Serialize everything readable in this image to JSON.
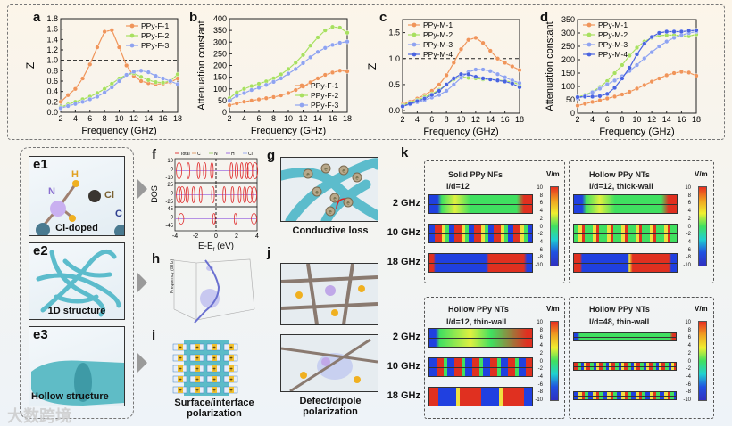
{
  "panel_labels": {
    "a": "a",
    "b": "b",
    "c": "c",
    "d": "d",
    "e1": "e1",
    "e2": "e2",
    "e3": "e3",
    "f": "f",
    "g": "g",
    "h": "h",
    "i": "i",
    "j": "j",
    "k": "k"
  },
  "chart_data": [
    {
      "id": "a",
      "type": "line",
      "xlabel": "Frequency (GHz)",
      "ylabel": "Z",
      "xlim": [
        2,
        18
      ],
      "ylim": [
        0,
        1.8
      ],
      "xticks": [
        2,
        4,
        6,
        8,
        10,
        12,
        14,
        16,
        18
      ],
      "yticks": [
        0,
        0.2,
        0.4,
        0.6,
        0.8,
        1.0,
        1.2,
        1.4,
        1.6,
        1.8
      ],
      "ytick_labels": [
        "0.0",
        "0.2",
        "0.4",
        "0.6",
        "0.8",
        "1.0",
        "1.2",
        "1.4",
        "1.6",
        "1.8"
      ],
      "reference_line": 1.0,
      "legend": "top-right",
      "x": [
        2,
        3,
        4,
        5,
        6,
        7,
        8,
        9,
        10,
        11,
        12,
        13,
        14,
        15,
        16,
        17,
        18
      ],
      "series": [
        {
          "name": "PPy-F-1",
          "color": "#f0955a",
          "values": [
            0.2,
            0.33,
            0.45,
            0.65,
            0.92,
            1.25,
            1.55,
            1.58,
            1.25,
            0.9,
            0.7,
            0.6,
            0.56,
            0.54,
            0.55,
            0.58,
            0.65
          ]
        },
        {
          "name": "PPy-F-2",
          "color": "#a8e060",
          "values": [
            0.1,
            0.15,
            0.2,
            0.25,
            0.3,
            0.37,
            0.45,
            0.55,
            0.65,
            0.72,
            0.75,
            0.68,
            0.62,
            0.58,
            0.57,
            0.6,
            0.73
          ]
        },
        {
          "name": "PPy-F-3",
          "color": "#8fa3f0",
          "values": [
            0.08,
            0.12,
            0.16,
            0.2,
            0.25,
            0.3,
            0.38,
            0.48,
            0.6,
            0.72,
            0.78,
            0.8,
            0.77,
            0.7,
            0.65,
            0.6,
            0.54
          ]
        }
      ]
    },
    {
      "id": "b",
      "type": "line",
      "xlabel": "Frequency (GHz)",
      "ylabel": "Attenuation constant",
      "xlim": [
        2,
        18
      ],
      "ylim": [
        0,
        400
      ],
      "xticks": [
        2,
        4,
        6,
        8,
        10,
        12,
        14,
        16,
        18
      ],
      "yticks": [
        0,
        50,
        100,
        150,
        200,
        250,
        300,
        350,
        400
      ],
      "ytick_labels": [
        "0",
        "50",
        "100",
        "150",
        "200",
        "250",
        "300",
        "350",
        "400"
      ],
      "legend": "bottom-right",
      "x": [
        2,
        3,
        4,
        5,
        6,
        7,
        8,
        9,
        10,
        11,
        12,
        13,
        14,
        15,
        16,
        17,
        18
      ],
      "series": [
        {
          "name": "PPy-F-1",
          "color": "#f0955a",
          "values": [
            30,
            38,
            45,
            50,
            55,
            60,
            65,
            72,
            82,
            95,
            110,
            128,
            145,
            160,
            170,
            178,
            175
          ]
        },
        {
          "name": "PPy-F-2",
          "color": "#a8e060",
          "values": [
            60,
            85,
            100,
            112,
            122,
            132,
            145,
            162,
            185,
            212,
            245,
            285,
            320,
            350,
            365,
            362,
            340
          ]
        },
        {
          "name": "PPy-F-3",
          "color": "#8fa3f0",
          "values": [
            50,
            70,
            82,
            95,
            105,
            117,
            130,
            145,
            165,
            185,
            210,
            235,
            258,
            275,
            288,
            297,
            302
          ]
        }
      ]
    },
    {
      "id": "c",
      "type": "line",
      "xlabel": "Frequency (GHz)",
      "ylabel": "Z",
      "xlim": [
        2,
        18
      ],
      "ylim": [
        -0.05,
        1.75
      ],
      "xticks": [
        2,
        4,
        6,
        8,
        10,
        12,
        14,
        16,
        18
      ],
      "yticks": [
        0,
        0.5,
        1.0,
        1.5
      ],
      "ytick_labels": [
        "0.0",
        "0.5",
        "1.0",
        "1.5"
      ],
      "reference_line": 1.0,
      "legend": "top-left",
      "x": [
        2,
        3,
        4,
        5,
        6,
        7,
        8,
        9,
        10,
        11,
        12,
        13,
        14,
        15,
        16,
        17,
        18
      ],
      "series": [
        {
          "name": "PPy-M-1",
          "color": "#f0955a",
          "values": [
            0.12,
            0.17,
            0.23,
            0.3,
            0.38,
            0.5,
            0.68,
            0.92,
            1.18,
            1.36,
            1.4,
            1.3,
            1.15,
            1.0,
            0.92,
            0.85,
            0.78
          ]
        },
        {
          "name": "PPy-M-2",
          "color": "#a8e060",
          "values": [
            0.1,
            0.15,
            0.2,
            0.26,
            0.32,
            0.4,
            0.5,
            0.6,
            0.65,
            0.63,
            0.62,
            0.6,
            0.6,
            0.59,
            0.57,
            0.55,
            0.5
          ]
        },
        {
          "name": "PPy-M-3",
          "color": "#8fa3f0",
          "values": [
            0.08,
            0.12,
            0.16,
            0.2,
            0.25,
            0.3,
            0.38,
            0.5,
            0.63,
            0.74,
            0.79,
            0.79,
            0.76,
            0.7,
            0.64,
            0.58,
            0.53
          ]
        },
        {
          "name": "PPy-M-4",
          "color": "#4a64e0",
          "values": [
            0.08,
            0.13,
            0.18,
            0.23,
            0.3,
            0.38,
            0.5,
            0.62,
            0.7,
            0.7,
            0.65,
            0.62,
            0.6,
            0.58,
            0.56,
            0.52,
            0.45
          ]
        }
      ]
    },
    {
      "id": "d",
      "type": "line",
      "xlabel": "Frequency (GHz)",
      "ylabel": "Attenuation constant",
      "xlim": [
        2,
        18
      ],
      "ylim": [
        0,
        350
      ],
      "xticks": [
        2,
        4,
        6,
        8,
        10,
        12,
        14,
        16,
        18
      ],
      "yticks": [
        0,
        50,
        100,
        150,
        200,
        250,
        300,
        350
      ],
      "ytick_labels": [
        "0",
        "50",
        "100",
        "150",
        "200",
        "250",
        "300",
        "350"
      ],
      "legend": "top-left",
      "x": [
        2,
        3,
        4,
        5,
        6,
        7,
        8,
        9,
        10,
        11,
        12,
        13,
        14,
        15,
        16,
        17,
        18
      ],
      "series": [
        {
          "name": "PPy-M-1",
          "color": "#f0955a",
          "values": [
            28,
            35,
            42,
            48,
            55,
            62,
            70,
            80,
            92,
            105,
            118,
            130,
            142,
            150,
            155,
            152,
            140
          ]
        },
        {
          "name": "PPy-M-2",
          "color": "#a8e060",
          "values": [
            60,
            68,
            80,
            98,
            120,
            150,
            180,
            215,
            245,
            268,
            282,
            290,
            292,
            292,
            290,
            288,
            295
          ]
        },
        {
          "name": "PPy-M-3",
          "color": "#8fa3f0",
          "values": [
            55,
            65,
            78,
            92,
            108,
            122,
            138,
            158,
            180,
            205,
            228,
            250,
            268,
            282,
            292,
            300,
            305
          ]
        },
        {
          "name": "PPy-M-4",
          "color": "#4a64e0",
          "values": [
            60,
            62,
            62,
            64,
            72,
            95,
            130,
            170,
            220,
            260,
            285,
            300,
            305,
            305,
            305,
            308,
            310
          ]
        }
      ]
    }
  ],
  "e": {
    "e1_atoms": {
      "h": "H",
      "n": "N",
      "cl": "Cl",
      "c": "C"
    },
    "e1_caption": "Cl-doped",
    "e2_caption": "1D structure",
    "e3_caption": "Hollow structure"
  },
  "f": {
    "legend": [
      "Total",
      "C",
      "N",
      "H",
      "Cl"
    ],
    "ylabel": "DOS",
    "xlabel": "E-E",
    "xlabel_sub": "f",
    "xlabel_unit": " (eV)",
    "xticks": [
      "-4",
      "-2",
      "0",
      "2",
      "4"
    ],
    "yticks": [
      [
        "10",
        "0",
        "-10"
      ],
      [
        "25",
        "0",
        "-25"
      ],
      [
        "45",
        "0",
        "-45"
      ]
    ]
  },
  "h": {
    "zlabel": "Frequency (GHz)"
  },
  "g": {
    "caption": "Conductive loss",
    "electron": "e"
  },
  "i": {
    "caption_line1": "Surface/interface",
    "caption_line2": "polarization"
  },
  "j": {
    "caption_line1": "Defect/dipole",
    "caption_line2": "polarization"
  },
  "k": {
    "unit": "V/m",
    "colorbar_ticks": [
      "10",
      "8",
      "6",
      "4",
      "2",
      "0",
      "-2",
      "-4",
      "-6",
      "-8",
      "-10"
    ],
    "frequencies": [
      "2 GHz",
      "10 GHz",
      "18 GHz"
    ],
    "models": [
      {
        "title": "Solid PPy NFs",
        "subtitle": "l/d=12"
      },
      {
        "title": "Hollow PPy NTs",
        "subtitle": "l/d=12, thick-wall"
      },
      {
        "title": "Hollow PPy NTs",
        "subtitle": "l/d=12, thin-wall"
      },
      {
        "title": "Hollow PPy NTs",
        "subtitle": "l/d=48, thin-wall"
      }
    ]
  },
  "watermark": "大数跨境"
}
